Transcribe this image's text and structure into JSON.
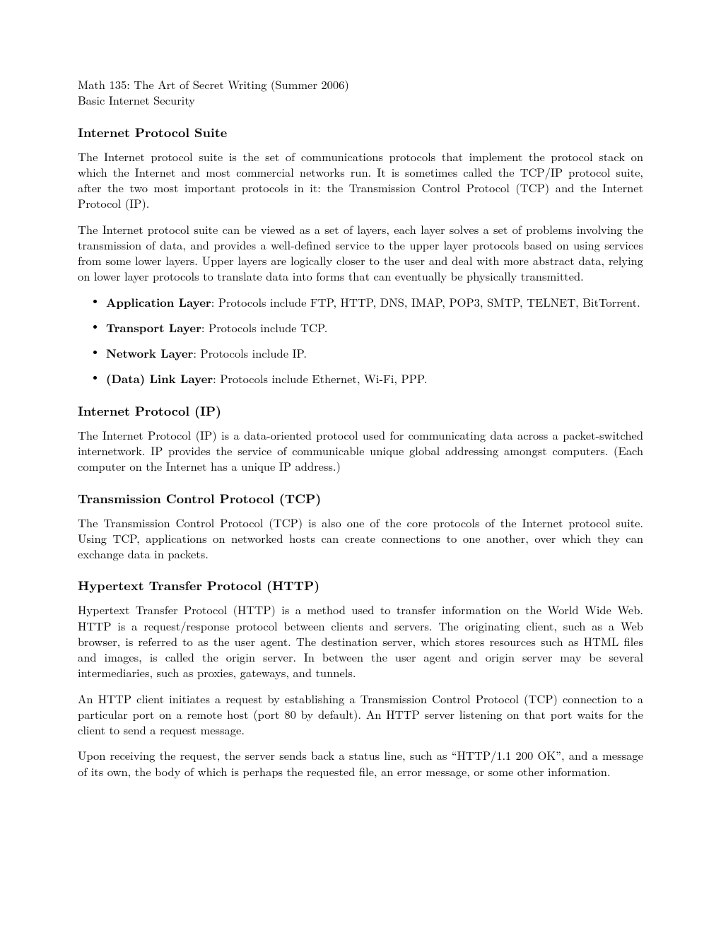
{
  "header": {
    "course": "Math 135: The Art of Secret Writing (Summer 2006)",
    "subtitle": "Basic Internet Security"
  },
  "sections": {
    "ips": {
      "title": "Internet Protocol Suite",
      "p1": "The Internet protocol suite is the set of communications protocols that implement the protocol stack on which the Internet and most commercial networks run. It is sometimes called the TCP/IP protocol suite, after the two most important protocols in it: the Transmission Control Protocol (TCP) and the Internet Protocol (IP).",
      "p2": "The Internet protocol suite can be viewed as a set of layers, each layer solves a set of problems involving the transmission of data, and provides a well-defined service to the upper layer protocols based on using services from some lower layers. Upper layers are logically closer to the user and deal with more abstract data, relying on lower layer protocols to translate data into forms that can eventually be physically transmitted.",
      "layers": {
        "l1_bold": "Application Layer",
        "l1_rest": ": Protocols include FTP, HTTP, DNS, IMAP, POP3, SMTP, TELNET, BitTorrent.",
        "l2_bold": "Transport Layer",
        "l2_rest": ": Protocols include TCP.",
        "l3_bold": "Network Layer",
        "l3_rest": ": Protocols include IP.",
        "l4_bold": "(Data) Link Layer",
        "l4_rest": ": Protocols include Ethernet, Wi-Fi, PPP."
      }
    },
    "ip": {
      "title": "Internet Protocol (IP)",
      "p1": "The Internet Protocol (IP) is a data-oriented protocol used for communicating data across a packet-switched internetwork. IP provides the service of communicable unique global addressing amongst computers. (Each computer on the Internet has a unique IP address.)"
    },
    "tcp": {
      "title": "Transmission Control Protocol (TCP)",
      "p1": "The Transmission Control Protocol (TCP) is also one of the core protocols of the Internet protocol suite. Using TCP, applications on networked hosts can create connections to one another, over which they can exchange data in packets."
    },
    "http": {
      "title": "Hypertext Transfer Protocol (HTTP)",
      "p1": "Hypertext Transfer Protocol (HTTP) is a method used to transfer information on the World Wide Web. HTTP is a request/response protocol between clients and servers. The originating client, such as a Web browser, is referred to as the user agent. The destination server, which stores resources such as HTML files and images, is called the origin server. In between the user agent and origin server may be several intermediaries, such as proxies, gateways, and tunnels.",
      "p2": "An HTTP client initiates a request by establishing a Transmission Control Protocol (TCP) connection to a particular port on a remote host (port 80 by default). An HTTP server listening on that port waits for the client to send a request message.",
      "p3": "Upon receiving the request, the server sends back a status line, such as “HTTP/1.1 200 OK”, and a message of its own, the body of which is perhaps the requested file, an error message, or some other information."
    }
  }
}
